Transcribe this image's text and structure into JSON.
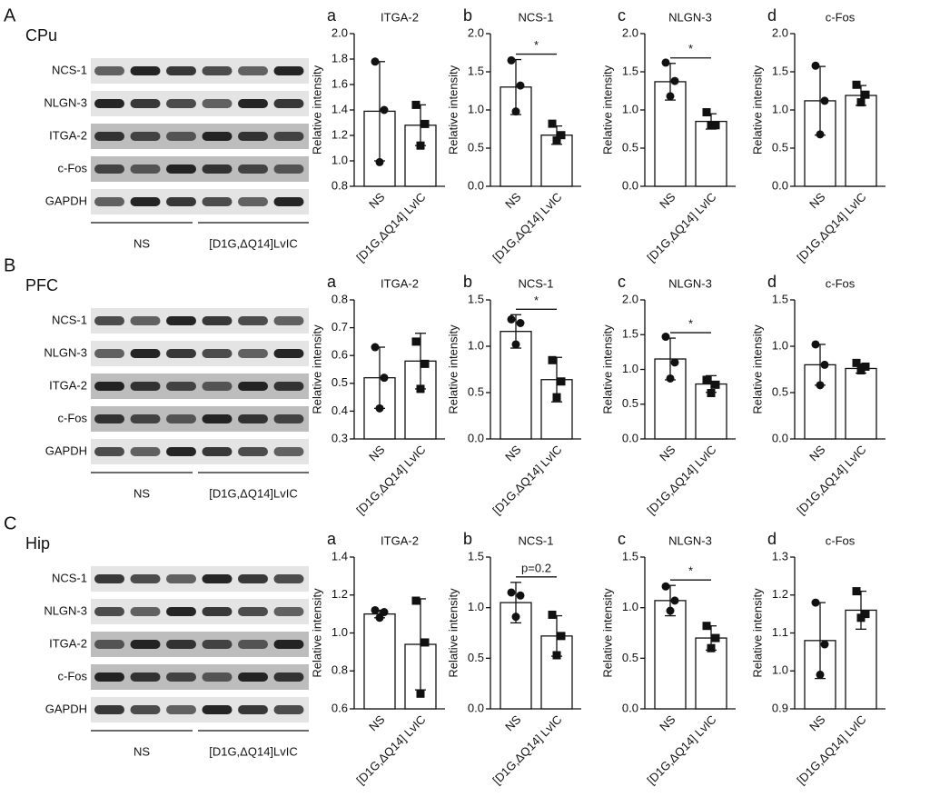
{
  "panels": [
    {
      "letter": "A",
      "region": "CPu",
      "blot_rows": [
        "NCS-1",
        "NLGN-3",
        "ITGA-2",
        "c-Fos",
        "GAPDH"
      ],
      "groups": [
        "NS",
        "[D1G,ΔQ14]LvIC"
      ]
    },
    {
      "letter": "B",
      "region": "PFC",
      "blot_rows": [
        "NCS-1",
        "NLGN-3",
        "ITGA-2",
        "c-Fos",
        "GAPDH"
      ],
      "groups": [
        "NS",
        "[D1G,ΔQ14]LvIC"
      ]
    },
    {
      "letter": "C",
      "region": "Hip",
      "blot_rows": [
        "NCS-1",
        "NLGN-3",
        "ITGA-2",
        "c-Fos",
        "GAPDH"
      ],
      "groups": [
        "NS",
        "[D1G,ΔQ14]LvIC"
      ]
    }
  ],
  "chart_data": [
    {
      "type": "bar",
      "panel": "a",
      "title": "ITGA-2",
      "y_label": "Relative intensity",
      "categories": [
        "NS",
        "[D1G,ΔQ14] LvIC"
      ],
      "values": [
        1.39,
        1.28
      ],
      "errors": [
        0.39,
        0.16
      ],
      "points": [
        [
          1.78,
          1.4,
          0.99
        ],
        [
          1.44,
          1.29,
          1.12
        ]
      ],
      "markers": [
        "circle",
        "square"
      ],
      "color": "#ffffff",
      "ylim": [
        0.8,
        2
      ],
      "yticks": [
        0.8,
        {
          "value": 1,
          "label": "1.0"
        },
        1.2,
        1.4,
        1.6,
        1.8,
        {
          "value": 2,
          "label": "2.0"
        }
      ]
    },
    {
      "type": "bar",
      "panel": "b",
      "title": "NCS-1",
      "y_label": "Relative intensity",
      "categories": [
        "NS",
        "[D1G,ΔQ14] LvIC"
      ],
      "values": [
        1.3,
        0.67
      ],
      "errors": [
        0.36,
        0.12
      ],
      "points": [
        [
          1.65,
          1.32,
          0.98
        ],
        [
          0.82,
          0.67,
          0.6
        ]
      ],
      "markers": [
        "circle",
        "square"
      ],
      "color": "#ffffff",
      "ylim": [
        0,
        2
      ],
      "yticks": [
        {
          "value": 0,
          "label": "0.0"
        },
        0.5,
        {
          "value": 1,
          "label": "1.0"
        },
        1.5,
        {
          "value": 2,
          "label": "2.0"
        }
      ],
      "annotation": "*"
    },
    {
      "type": "bar",
      "panel": "c",
      "title": "NLGN-3",
      "y_label": "Relative intensity",
      "categories": [
        "NS",
        "[D1G,ΔQ14] LvIC"
      ],
      "values": [
        1.37,
        0.85
      ],
      "errors": [
        0.24,
        0.1
      ],
      "points": [
        [
          1.62,
          1.38,
          1.18
        ],
        [
          0.97,
          0.8,
          0.8
        ]
      ],
      "markers": [
        "circle",
        "square"
      ],
      "color": "#ffffff",
      "ylim": [
        0,
        2
      ],
      "yticks": [
        {
          "value": 0,
          "label": "0.0"
        },
        0.5,
        {
          "value": 1,
          "label": "1.0"
        },
        1.5,
        {
          "value": 2,
          "label": "2.0"
        }
      ],
      "annotation": "*"
    },
    {
      "type": "bar",
      "panel": "d",
      "title": "c-Fos",
      "y_label": "Relative intensity",
      "categories": [
        "NS",
        "[D1G,ΔQ14] LvIC"
      ],
      "values": [
        1.12,
        1.19
      ],
      "errors": [
        0.45,
        0.13
      ],
      "points": [
        [
          1.58,
          1.12,
          0.68
        ],
        [
          1.33,
          1.2,
          1.1
        ]
      ],
      "markers": [
        "circle",
        "square"
      ],
      "color": "#ffffff",
      "ylim": [
        0,
        2
      ],
      "yticks": [
        {
          "value": 0,
          "label": "0.0"
        },
        0.5,
        {
          "value": 1,
          "label": "1.0"
        },
        1.5,
        {
          "value": 2,
          "label": "2.0"
        }
      ]
    },
    {
      "type": "bar",
      "panel": "a",
      "title": "ITGA-2",
      "y_label": "Relative intensity",
      "categories": [
        "NS",
        "[D1G,ΔQ14] LvIC"
      ],
      "values": [
        0.52,
        0.58
      ],
      "errors": [
        0.11,
        0.1
      ],
      "points": [
        [
          0.63,
          0.52,
          0.41
        ],
        [
          0.65,
          0.57,
          0.48
        ]
      ],
      "markers": [
        "circle",
        "square"
      ],
      "color": "#ffffff",
      "ylim": [
        0.3,
        0.8
      ],
      "yticks": [
        0.3,
        0.4,
        0.5,
        0.6,
        0.7,
        0.8
      ]
    },
    {
      "type": "bar",
      "panel": "b",
      "title": "NCS-1",
      "y_label": "Relative intensity",
      "categories": [
        "NS",
        "[D1G,ΔQ14] LvIC"
      ],
      "values": [
        1.16,
        0.64
      ],
      "errors": [
        0.18,
        0.24
      ],
      "points": [
        [
          1.29,
          1.25,
          1.02
        ],
        [
          0.85,
          0.62,
          0.45
        ]
      ],
      "markers": [
        "circle",
        "square"
      ],
      "color": "#ffffff",
      "ylim": [
        0,
        1.5
      ],
      "yticks": [
        {
          "value": 0,
          "label": "0.0"
        },
        0.5,
        {
          "value": 1,
          "label": "1.0"
        },
        1.5
      ],
      "annotation": "*"
    },
    {
      "type": "bar",
      "panel": "c",
      "title": "NLGN-3",
      "y_label": "Relative intensity",
      "categories": [
        "NS",
        "[D1G,ΔQ14] LvIC"
      ],
      "values": [
        1.15,
        0.79
      ],
      "errors": [
        0.3,
        0.12
      ],
      "points": [
        [
          1.47,
          1.1,
          0.87
        ],
        [
          0.85,
          0.78,
          0.66
        ]
      ],
      "markers": [
        "circle",
        "square"
      ],
      "color": "#ffffff",
      "ylim": [
        0,
        2
      ],
      "yticks": [
        {
          "value": 0,
          "label": "0.0"
        },
        0.5,
        {
          "value": 1,
          "label": "1.0"
        },
        1.5,
        {
          "value": 2,
          "label": "2.0"
        }
      ],
      "annotation": "*"
    },
    {
      "type": "bar",
      "panel": "d",
      "title": "c-Fos",
      "y_label": "Relative intensity",
      "categories": [
        "NS",
        "[D1G,ΔQ14] LvIC"
      ],
      "values": [
        0.8,
        0.76
      ],
      "errors": [
        0.22,
        0.05
      ],
      "points": [
        [
          1.02,
          0.8,
          0.58
        ],
        [
          0.82,
          0.78,
          0.74
        ]
      ],
      "markers": [
        "circle",
        "square"
      ],
      "color": "#ffffff",
      "ylim": [
        0,
        1.5
      ],
      "yticks": [
        {
          "value": 0,
          "label": "0.0"
        },
        0.5,
        {
          "value": 1,
          "label": "1.0"
        },
        1.5
      ]
    },
    {
      "type": "bar",
      "panel": "a",
      "title": "ITGA-2",
      "y_label": "Relative intensity",
      "categories": [
        "NS",
        "[D1G,ΔQ14] LvIC"
      ],
      "values": [
        1.1,
        0.94
      ],
      "errors": [
        0.02,
        0.24
      ],
      "points": [
        [
          1.12,
          1.11,
          1.08
        ],
        [
          1.17,
          0.95,
          0.68
        ]
      ],
      "markers": [
        "circle",
        "square"
      ],
      "color": "#ffffff",
      "ylim": [
        0.6,
        1.4
      ],
      "yticks": [
        0.6,
        0.8,
        {
          "value": 1,
          "label": "1.0"
        },
        1.2,
        1.4
      ]
    },
    {
      "type": "bar",
      "panel": "b",
      "title": "NCS-1",
      "y_label": "Relative intensity",
      "categories": [
        "NS",
        "[D1G,ΔQ14] LvIC"
      ],
      "values": [
        1.05,
        0.72
      ],
      "errors": [
        0.2,
        0.2
      ],
      "points": [
        [
          1.15,
          1.12,
          0.91
        ],
        [
          0.93,
          0.72,
          0.53
        ]
      ],
      "markers": [
        "circle",
        "square"
      ],
      "color": "#ffffff",
      "ylim": [
        0,
        1.5
      ],
      "yticks": [
        {
          "value": 0,
          "label": "0.0"
        },
        0.5,
        {
          "value": 1,
          "label": "1.0"
        },
        1.5
      ],
      "annotation": "p=0.2"
    },
    {
      "type": "bar",
      "panel": "c",
      "title": "NLGN-3",
      "y_label": "Relative intensity",
      "categories": [
        "NS",
        "[D1G,ΔQ14] LvIC"
      ],
      "values": [
        1.07,
        0.7
      ],
      "errors": [
        0.15,
        0.12
      ],
      "points": [
        [
          1.21,
          1.07,
          0.97
        ],
        [
          0.82,
          0.7,
          0.6
        ]
      ],
      "markers": [
        "circle",
        "square"
      ],
      "color": "#ffffff",
      "ylim": [
        0,
        1.5
      ],
      "yticks": [
        {
          "value": 0,
          "label": "0.0"
        },
        0.5,
        {
          "value": 1,
          "label": "1.0"
        },
        1.5
      ],
      "annotation": "*"
    },
    {
      "type": "bar",
      "panel": "d",
      "title": "c-Fos",
      "y_label": "Relative intensity",
      "categories": [
        "NS",
        "[D1G,ΔQ14] LvIC"
      ],
      "values": [
        1.08,
        1.16
      ],
      "errors": [
        0.1,
        0.05
      ],
      "points": [
        [
          1.18,
          1.07,
          0.99
        ],
        [
          1.21,
          1.15,
          1.14
        ]
      ],
      "markers": [
        "circle",
        "square"
      ],
      "color": "#ffffff",
      "ylim": [
        0.9,
        1.3
      ],
      "yticks": [
        0.9,
        {
          "value": 1,
          "label": "1.0"
        },
        1.1,
        1.2,
        1.3
      ]
    }
  ]
}
